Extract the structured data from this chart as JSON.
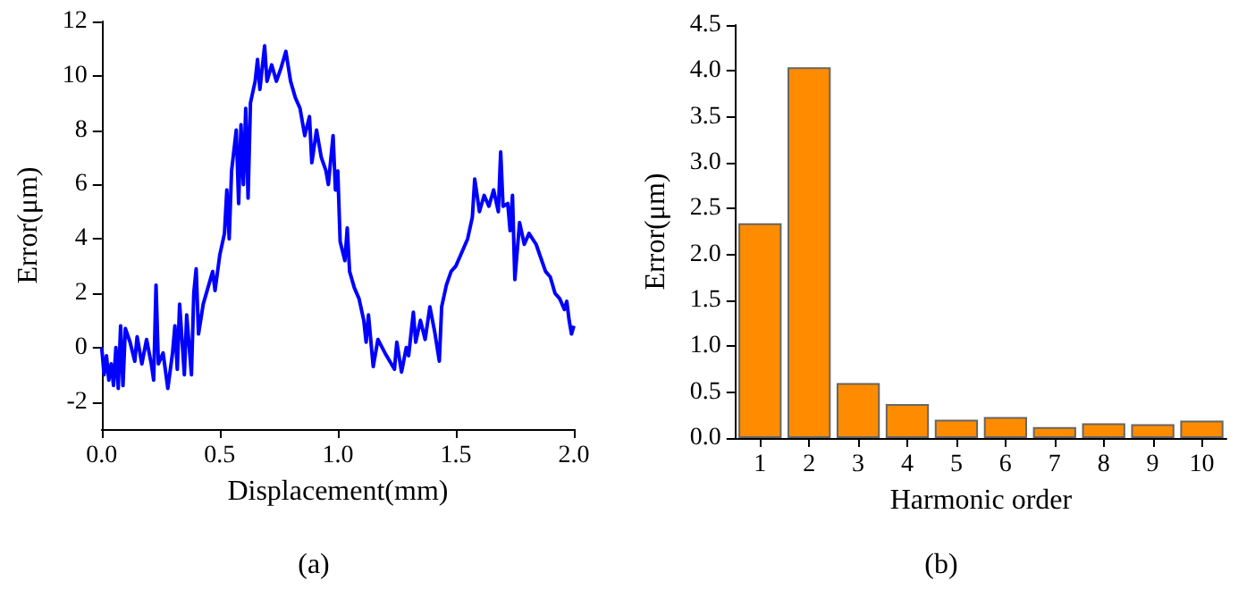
{
  "chart_data": [
    {
      "type": "line",
      "xlabel": "Displacement(mm)",
      "ylabel": "Error(μm)",
      "annotations": [
        "(a)"
      ],
      "marker": "none",
      "line_style": "solid",
      "xlim": [
        0,
        2
      ],
      "xticks": [
        {
          "value": 0,
          "label": "0.0"
        },
        0.5,
        {
          "value": 1,
          "label": "1.0"
        },
        1.5,
        {
          "value": 2,
          "label": "2.0"
        }
      ],
      "ylim": [
        -3,
        12
      ],
      "yticks": [
        -2,
        0,
        2,
        4,
        6,
        8,
        10,
        12
      ],
      "series": [
        {
          "color": "#0000ff",
          "x": [
            0,
            0.01,
            0.02,
            0.03,
            0.04,
            0.05,
            0.06,
            0.07,
            0.08,
            0.09,
            0.1,
            0.12,
            0.14,
            0.15,
            0.17,
            0.19,
            0.21,
            0.22,
            0.23,
            0.24,
            0.26,
            0.28,
            0.3,
            0.31,
            0.32,
            0.33,
            0.35,
            0.36,
            0.38,
            0.39,
            0.4,
            0.41,
            0.43,
            0.45,
            0.47,
            0.48,
            0.5,
            0.52,
            0.53,
            0.54,
            0.55,
            0.57,
            0.58,
            0.59,
            0.6,
            0.61,
            0.62,
            0.63,
            0.65,
            0.66,
            0.67,
            0.69,
            0.7,
            0.72,
            0.74,
            0.76,
            0.78,
            0.8,
            0.82,
            0.84,
            0.86,
            0.88,
            0.89,
            0.91,
            0.93,
            0.95,
            0.96,
            0.98,
            0.99,
            1.0,
            1.01,
            1.03,
            1.04,
            1.05,
            1.07,
            1.09,
            1.11,
            1.12,
            1.13,
            1.15,
            1.17,
            1.2,
            1.22,
            1.24,
            1.25,
            1.27,
            1.29,
            1.3,
            1.32,
            1.33,
            1.35,
            1.37,
            1.39,
            1.41,
            1.43,
            1.44,
            1.46,
            1.48,
            1.5,
            1.52,
            1.55,
            1.57,
            1.58,
            1.6,
            1.62,
            1.64,
            1.66,
            1.68,
            1.69,
            1.7,
            1.72,
            1.73,
            1.74,
            1.75,
            1.77,
            1.79,
            1.81,
            1.84,
            1.86,
            1.88,
            1.9,
            1.92,
            1.94,
            1.96,
            1.97,
            1.98,
            1.99,
            2.0
          ],
          "values": [
            0,
            -1.0,
            -0.3,
            -1.2,
            -0.6,
            -1.4,
            0.0,
            -1.5,
            0.8,
            -1.4,
            0.7,
            0.2,
            -0.5,
            0.4,
            -0.6,
            0.3,
            -0.6,
            -1.2,
            2.3,
            -0.6,
            -0.2,
            -1.5,
            -0.2,
            0.8,
            -0.8,
            1.6,
            -1.0,
            1.2,
            -1.0,
            2.0,
            2.9,
            0.5,
            1.6,
            2.2,
            2.8,
            2.1,
            3.4,
            4.2,
            5.8,
            4.0,
            6.5,
            8.0,
            5.3,
            8.2,
            6.0,
            8.8,
            5.5,
            9.0,
            9.8,
            10.6,
            9.5,
            11.1,
            9.8,
            10.4,
            9.8,
            10.3,
            10.9,
            9.8,
            9.2,
            8.8,
            7.8,
            8.5,
            6.8,
            8.0,
            7.0,
            6.5,
            6.0,
            7.8,
            5.8,
            6.5,
            3.9,
            3.2,
            4.4,
            2.8,
            2.2,
            1.8,
            1.0,
            0.2,
            1.2,
            -0.7,
            0.3,
            -0.2,
            -0.5,
            -0.8,
            0.2,
            -0.9,
            0.0,
            -0.3,
            1.3,
            0.2,
            1.0,
            0.3,
            1.5,
            0.6,
            -0.5,
            1.5,
            2.3,
            2.8,
            3.0,
            3.4,
            4.0,
            4.8,
            6.2,
            5.0,
            5.6,
            5.2,
            5.8,
            5.0,
            7.2,
            5.2,
            5.3,
            4.3,
            5.6,
            2.5,
            4.6,
            3.8,
            4.2,
            3.8,
            3.3,
            2.8,
            2.6,
            2.0,
            1.8,
            1.4,
            1.7,
            1.0,
            0.5,
            0.8
          ]
        }
      ]
    },
    {
      "type": "bar",
      "xlabel": "Harmonic order",
      "ylabel": "Error(μm)",
      "annotations": [
        "(b)"
      ],
      "categories": [
        "1",
        "2",
        "3",
        "4",
        "5",
        "6",
        "7",
        "8",
        "9",
        "10"
      ],
      "ylim": [
        0,
        4.5
      ],
      "yticks": [
        {
          "value": 0,
          "label": "0.0"
        },
        0.5,
        {
          "value": 1,
          "label": "1.0"
        },
        1.5,
        {
          "value": 2,
          "label": "2.0"
        },
        2.5,
        {
          "value": 3,
          "label": "3.0"
        },
        3.5,
        {
          "value": 4,
          "label": "4.0"
        },
        4.5
      ],
      "series": [
        {
          "color": "#ff8c00",
          "values": [
            2.34,
            4.04,
            0.6,
            0.37,
            0.2,
            0.23,
            0.12,
            0.16,
            0.15,
            0.19
          ]
        }
      ]
    }
  ]
}
